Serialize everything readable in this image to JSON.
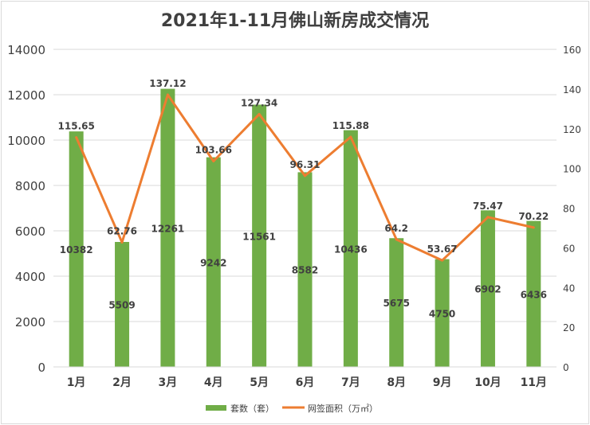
{
  "chart_data": {
    "type": "bar+line",
    "title": "2021年1-11月佛山新房成交情况",
    "categories": [
      "1月",
      "2月",
      "3月",
      "4月",
      "5月",
      "6月",
      "7月",
      "8月",
      "9月",
      "10月",
      "11月"
    ],
    "series": [
      {
        "name": "套数（套）",
        "type": "bar",
        "axis": "left",
        "color": "#70ad47",
        "values": [
          10382,
          5509,
          12261,
          9242,
          11561,
          8582,
          10436,
          5675,
          4750,
          6902,
          6436
        ]
      },
      {
        "name": "网签面积（万㎡）",
        "type": "line",
        "axis": "right",
        "color": "#ed7d31",
        "values": [
          115.65,
          62.76,
          137.12,
          103.66,
          127.34,
          96.31,
          115.88,
          64.2,
          53.67,
          75.47,
          70.22
        ]
      }
    ],
    "ylim": [
      0,
      14000
    ],
    "yticks": [
      0,
      2000,
      4000,
      6000,
      8000,
      10000,
      12000,
      14000
    ],
    "y2lim": [
      0,
      160
    ],
    "y2ticks": [
      0,
      20,
      40,
      60,
      80,
      100,
      120,
      140,
      160
    ],
    "grid": true,
    "legend": "bottom"
  }
}
